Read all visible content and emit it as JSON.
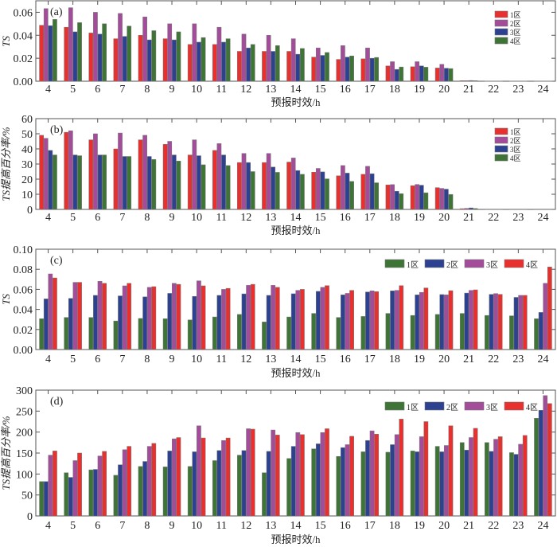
{
  "colors": {
    "red": "#e8302e",
    "purple": "#a24c9a",
    "blue": "#2c4290",
    "green": "#3f7437"
  },
  "chart_data": [
    {
      "type": "bar",
      "panel_label": "(a)",
      "xlabel": "预报时效/h",
      "ylabel": "TS",
      "ylim": [
        0,
        0.07
      ],
      "yticks": [
        0,
        0.02,
        0.04,
        0.06
      ],
      "ytick_labels": [
        "0.00",
        "0.02",
        "0.04",
        "0.06"
      ],
      "categories": [
        "4",
        "5",
        "6",
        "7",
        "8",
        "9",
        "10",
        "11",
        "12",
        "13",
        "14",
        "15",
        "16",
        "17",
        "18",
        "19",
        "20",
        "21",
        "22",
        "23",
        "24"
      ],
      "legend_position": "top-right",
      "legend_layout": "vertical",
      "series": [
        {
          "name": "1区",
          "color": "#e8302e",
          "values": [
            0.0487,
            0.047,
            0.042,
            0.037,
            0.04,
            0.037,
            0.032,
            0.032,
            0.026,
            0.026,
            0.026,
            0.021,
            0.019,
            0.0195,
            0.0133,
            0.0126,
            0.0115,
            0.0005,
            0.0002,
            0.0002,
            0.0002
          ]
        },
        {
          "name": "2区",
          "color": "#a24c9a",
          "values": [
            0.0632,
            0.064,
            0.06,
            0.059,
            0.056,
            0.05,
            0.05,
            0.047,
            0.041,
            0.04,
            0.037,
            0.029,
            0.031,
            0.029,
            0.017,
            0.017,
            0.0147,
            0.0005,
            0.0002,
            0.0002,
            0.0002
          ]
        },
        {
          "name": "3区",
          "color": "#2c4290",
          "values": [
            0.0483,
            0.043,
            0.041,
            0.039,
            0.036,
            0.036,
            0.034,
            0.034,
            0.029,
            0.026,
            0.0235,
            0.0225,
            0.021,
            0.02,
            0.0103,
            0.0133,
            0.0113,
            0.0006,
            0.0002,
            0.0002,
            0.0002
          ]
        },
        {
          "name": "4区",
          "color": "#3f7437",
          "values": [
            0.0538,
            0.051,
            0.05,
            0.048,
            0.044,
            0.043,
            0.038,
            0.037,
            0.032,
            0.031,
            0.0285,
            0.025,
            0.022,
            0.0207,
            0.0124,
            0.0122,
            0.011,
            0.0005,
            0.0002,
            0.0002,
            0.0002
          ]
        }
      ]
    },
    {
      "type": "bar",
      "panel_label": "(b)",
      "xlabel": "预报时效/h",
      "ylabel": "TS提高百分率/%",
      "ylim": [
        0,
        60
      ],
      "yticks": [
        0,
        10,
        20,
        30,
        40,
        50,
        60
      ],
      "ytick_labels": [
        "0",
        "10",
        "20",
        "30",
        "40",
        "50",
        "60"
      ],
      "categories": [
        "4",
        "5",
        "6",
        "7",
        "8",
        "9",
        "10",
        "11",
        "12",
        "13",
        "14",
        "15",
        "16",
        "17",
        "18",
        "19",
        "20",
        "21",
        "22",
        "23",
        "24"
      ],
      "legend_position": "top-right",
      "legend_layout": "vertical",
      "series": [
        {
          "name": "1区",
          "color": "#e8302e",
          "values": [
            49,
            51,
            46,
            40,
            46,
            43,
            36,
            39,
            31,
            31,
            31.3,
            24.6,
            22.2,
            23.2,
            16.2,
            15.7,
            14.4,
            0.5,
            0.2,
            0.2,
            0.2
          ]
        },
        {
          "name": "2区",
          "color": "#a24c9a",
          "values": [
            47,
            52,
            50,
            50.5,
            49,
            45,
            46,
            43.5,
            37,
            37,
            34,
            27.1,
            29,
            28.5,
            16.4,
            16.5,
            13.9,
            0.7,
            0.2,
            0.2,
            0.2
          ]
        },
        {
          "name": "3区",
          "color": "#2c4290",
          "values": [
            39,
            36,
            36,
            35,
            35,
            36,
            35.5,
            36,
            31,
            28,
            25.7,
            24.8,
            24,
            23.6,
            12,
            16,
            13.4,
            1.0,
            0.2,
            0.2,
            0.2
          ]
        },
        {
          "name": "4区",
          "color": "#3f7437",
          "values": [
            36,
            35.5,
            36,
            35,
            33,
            32,
            29.5,
            29,
            25,
            24.5,
            23.2,
            20.2,
            18.5,
            17.6,
            10.4,
            11,
            9.9,
            0.6,
            0.2,
            0.2,
            0.2
          ]
        }
      ]
    },
    {
      "type": "bar",
      "panel_label": "(c)",
      "xlabel": "预报时效/h",
      "ylabel": "TS",
      "ylim": [
        0,
        0.1
      ],
      "yticks": [
        0,
        0.02,
        0.04,
        0.06,
        0.08,
        0.1
      ],
      "ytick_labels": [
        "0.00",
        "0.02",
        "0.04",
        "0.06",
        "0.08",
        "0.10"
      ],
      "categories": [
        "4",
        "5",
        "6",
        "7",
        "8",
        "9",
        "10",
        "11",
        "12",
        "13",
        "14",
        "15",
        "16",
        "17",
        "18",
        "19",
        "20",
        "21",
        "22",
        "23",
        "24"
      ],
      "legend_position": "top-right",
      "legend_layout": "horizontal",
      "series": [
        {
          "name": "1区",
          "color": "#3f7437",
          "values": [
            0.0307,
            0.032,
            0.032,
            0.0285,
            0.031,
            0.0307,
            0.0295,
            0.0325,
            0.035,
            0.0275,
            0.0325,
            0.036,
            0.032,
            0.033,
            0.036,
            0.034,
            0.035,
            0.036,
            0.034,
            0.0336,
            0.0307
          ]
        },
        {
          "name": "2区",
          "color": "#2c4290",
          "values": [
            0.0505,
            0.051,
            0.054,
            0.0535,
            0.0525,
            0.056,
            0.053,
            0.054,
            0.0555,
            0.054,
            0.0556,
            0.058,
            0.0545,
            0.0574,
            0.0585,
            0.0545,
            0.0548,
            0.0563,
            0.055,
            0.052,
            0.037
          ]
        },
        {
          "name": "3区",
          "color": "#a24c9a",
          "values": [
            0.0754,
            0.067,
            0.068,
            0.0635,
            0.062,
            0.066,
            0.0685,
            0.06,
            0.064,
            0.064,
            0.059,
            0.062,
            0.056,
            0.0585,
            0.059,
            0.057,
            0.0545,
            0.059,
            0.0558,
            0.054,
            0.066
          ]
        },
        {
          "name": "4区",
          "color": "#e8302e",
          "values": [
            0.0714,
            0.067,
            0.066,
            0.066,
            0.0627,
            0.065,
            0.0635,
            0.061,
            0.065,
            0.062,
            0.06,
            0.0637,
            0.059,
            0.0577,
            0.0637,
            0.0614,
            0.0587,
            0.0595,
            0.055,
            0.054,
            0.0823
          ]
        }
      ]
    },
    {
      "type": "bar",
      "panel_label": "(d)",
      "xlabel": "预报时效/h",
      "ylabel": "TS提高百分率/%",
      "ylim": [
        0,
        300
      ],
      "yticks": [
        0,
        50,
        100,
        150,
        200,
        250,
        300
      ],
      "ytick_labels": [
        "0",
        "50",
        "100",
        "150",
        "200",
        "250",
        "300"
      ],
      "categories": [
        "4",
        "5",
        "6",
        "7",
        "8",
        "9",
        "10",
        "11",
        "12",
        "13",
        "14",
        "15",
        "16",
        "17",
        "18",
        "19",
        "20",
        "21",
        "22",
        "23",
        "24"
      ],
      "legend_position": "top-right",
      "legend_layout": "horizontal",
      "series": [
        {
          "name": "1区",
          "color": "#3f7437",
          "values": [
            82,
            103,
            110,
            97,
            118,
            117,
            118,
            132,
            145,
            103,
            137,
            160,
            142,
            153,
            152,
            155,
            166,
            175,
            175,
            151,
            233
          ]
        },
        {
          "name": "2区",
          "color": "#2c4290",
          "values": [
            82,
            92,
            111,
            122,
            130,
            155,
            153,
            156,
            156,
            154,
            166,
            172,
            163,
            180,
            170,
            153,
            153,
            157,
            154,
            147,
            252
          ]
        },
        {
          "name": "3区",
          "color": "#a24c9a",
          "values": [
            145,
            132,
            143,
            158,
            166,
            184,
            215,
            180,
            208,
            205,
            199,
            199,
            170,
            203,
            194,
            189,
            168,
            187,
            183,
            171,
            287
          ]
        },
        {
          "name": "4区",
          "color": "#e8302e",
          "values": [
            155,
            150,
            154,
            166,
            173,
            187,
            186,
            186,
            207,
            193,
            194,
            208,
            190,
            195,
            231,
            225,
            215,
            209,
            189,
            192,
            268
          ]
        }
      ]
    }
  ]
}
